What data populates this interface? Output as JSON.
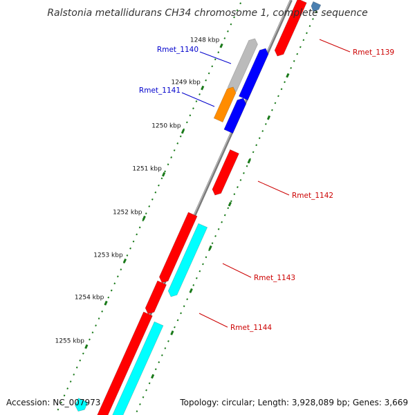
{
  "title": "Ralstonia metallidurans CH34 chromosome 1, complete sequence",
  "footer": {
    "accession": "Accession: NC_007973",
    "topology": "Topology: circular; Length: 3,928,089 bp; Genes: 3,669"
  },
  "colors": {
    "backbone": "#777777",
    "tick": "#1a7a1a",
    "forward_cds": "#ff0000",
    "reverse_cds": "#0000ff",
    "grey_feature": "#bbbbbb",
    "orange_feature": "#ff8c00",
    "cyan_feature": "#00ffff",
    "label_red": "#cc0000",
    "label_blue": "#0000cc"
  },
  "kbp_labels": [
    {
      "pos": 1248,
      "text": "1248 kbp"
    },
    {
      "pos": 1249,
      "text": "1249 kbp"
    },
    {
      "pos": 1250,
      "text": "1250 kbp"
    },
    {
      "pos": 1251,
      "text": "1251 kbp"
    },
    {
      "pos": 1252,
      "text": "1252 kbp"
    },
    {
      "pos": 1253,
      "text": "1253 kbp"
    },
    {
      "pos": 1254,
      "text": "1254 kbp"
    },
    {
      "pos": 1255,
      "text": "1255 kbp"
    }
  ],
  "gene_labels": [
    {
      "name": "Rmet_1139",
      "color": "#cc0000"
    },
    {
      "name": "Rmet_1140",
      "color": "#0000cc"
    },
    {
      "name": "Rmet_1141",
      "color": "#0000cc"
    },
    {
      "name": "Rmet_1142",
      "color": "#cc0000"
    },
    {
      "name": "Rmet_1143",
      "color": "#cc0000"
    },
    {
      "name": "Rmet_1144",
      "color": "#cc0000"
    }
  ]
}
